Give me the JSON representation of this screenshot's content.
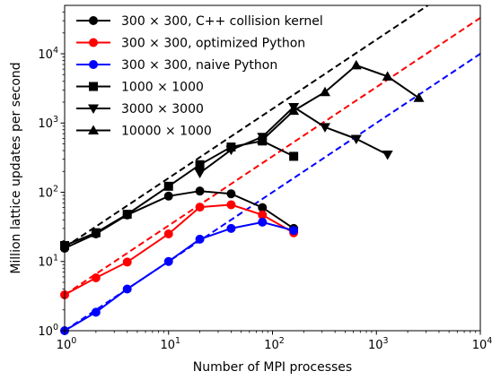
{
  "chart_data": {
    "type": "line",
    "xlabel": "Number of MPI processes",
    "ylabel": "Million lattice updates per second",
    "x_scale": "log",
    "y_scale": "log",
    "xlim": [
      1,
      10000
    ],
    "ylim": [
      1,
      50000
    ],
    "x_ticks": [
      {
        "value": 1,
        "mantissa": "10",
        "exp": "0"
      },
      {
        "value": 10,
        "mantissa": "10",
        "exp": "1"
      },
      {
        "value": 100,
        "mantissa": "10",
        "exp": "2"
      },
      {
        "value": 1000,
        "mantissa": "10",
        "exp": "3"
      },
      {
        "value": 10000,
        "mantissa": "10",
        "exp": "4"
      }
    ],
    "y_ticks": [
      {
        "value": 1,
        "mantissa": "10",
        "exp": "0"
      },
      {
        "value": 10,
        "mantissa": "10",
        "exp": "1"
      },
      {
        "value": 100,
        "mantissa": "10",
        "exp": "2"
      },
      {
        "value": 1000,
        "mantissa": "10",
        "exp": "3"
      },
      {
        "value": 10000,
        "mantissa": "10",
        "exp": "4"
      }
    ],
    "grid": false,
    "legend_position": "top-left",
    "series": [
      {
        "name": "300 × 300, C++ collision kernel",
        "color": "#000000",
        "marker": "circle",
        "x": [
          1,
          2,
          4,
          10,
          20,
          40,
          80,
          160
        ],
        "y": [
          15.5,
          25,
          47,
          88,
          104,
          95,
          60,
          30
        ]
      },
      {
        "name": "300 × 300, optimized Python",
        "color": "#ff0000",
        "marker": "circle",
        "x": [
          1,
          2,
          4,
          10,
          20,
          40,
          80,
          160
        ],
        "y": [
          3.3,
          5.8,
          9.8,
          25,
          61,
          66,
          47,
          26
        ]
      },
      {
        "name": "300 × 300, naive Python",
        "color": "#0000ff",
        "marker": "circle",
        "x": [
          1,
          2,
          4,
          10,
          20,
          40,
          80,
          160
        ],
        "y": [
          1.0,
          1.85,
          4.0,
          10,
          21,
          30,
          37,
          28
        ]
      },
      {
        "name": "1000 × 1000",
        "color": "#000000",
        "marker": "square",
        "x": [
          1,
          2,
          4,
          10,
          20,
          40,
          80,
          160
        ],
        "y": [
          17,
          26,
          48,
          122,
          250,
          450,
          550,
          330
        ]
      },
      {
        "name": "3000 × 3000",
        "color": "#000000",
        "marker": "triangle-down",
        "x": [
          20,
          40,
          80,
          160,
          320,
          640,
          1280
        ],
        "y": [
          190,
          410,
          630,
          1700,
          870,
          590,
          350
        ]
      },
      {
        "name": "10000 × 1000",
        "color": "#000000",
        "marker": "triangle-up",
        "x": [
          80,
          160,
          320,
          640,
          1280,
          2560
        ],
        "y": [
          570,
          1500,
          2800,
          6800,
          4700,
          2300
        ]
      }
    ],
    "reference_lines": [
      {
        "color": "#000000",
        "x": [
          1,
          10000
        ],
        "y": [
          16,
          160000
        ]
      },
      {
        "color": "#ff0000",
        "x": [
          1,
          10000
        ],
        "y": [
          3.3,
          33000
        ]
      },
      {
        "color": "#0000ff",
        "x": [
          1,
          10000
        ],
        "y": [
          1.0,
          10000
        ]
      }
    ]
  }
}
